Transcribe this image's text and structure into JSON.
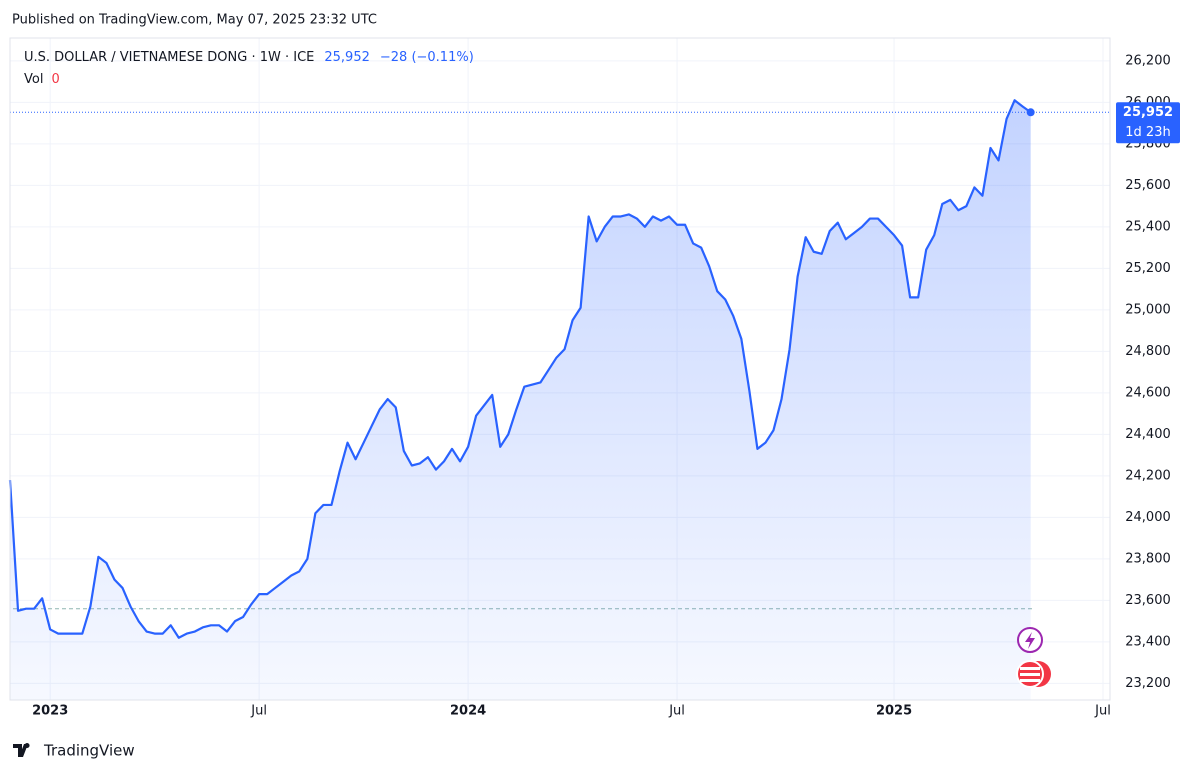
{
  "chart_data": {
    "type": "area",
    "published": "Published on TradingView.com, May 07, 2025 23:32 UTC",
    "symbol": "U.S. DOLLAR / VIETNAMESE DONG · 1W · ICE",
    "change": "−28 (−0.11%)",
    "volume_label": "Vol",
    "volume": 0,
    "brand": "TradingView",
    "countdown": "1d 23h",
    "price_label": {
      "value": 25952,
      "label": "25,952"
    },
    "reference_value": 23560,
    "categories": [
      null,
      null,
      null,
      null,
      null,
      "2023",
      null,
      null,
      null,
      null,
      null,
      null,
      null,
      null,
      null,
      null,
      null,
      null,
      null,
      null,
      null,
      null,
      null,
      null,
      null,
      null,
      null,
      null,
      null,
      null,
      null,
      "Jul",
      null,
      null,
      null,
      null,
      null,
      null,
      null,
      null,
      null,
      null,
      null,
      null,
      null,
      null,
      null,
      null,
      null,
      null,
      null,
      null,
      null,
      null,
      null,
      null,
      null,
      "2024",
      null,
      null,
      null,
      null,
      null,
      null,
      null,
      null,
      null,
      null,
      null,
      null,
      null,
      null,
      null,
      null,
      null,
      null,
      null,
      null,
      null,
      null,
      null,
      null,
      null,
      "Jul",
      null,
      null,
      null,
      null,
      null,
      null,
      null,
      null,
      null,
      null,
      null,
      null,
      null,
      null,
      null,
      null,
      null,
      null,
      null,
      null,
      null,
      null,
      null,
      null,
      null,
      null,
      "2025",
      null,
      null,
      null,
      null,
      null,
      null,
      null,
      null,
      null,
      null,
      null,
      null,
      null,
      null,
      null,
      null,
      null,
      null,
      null,
      null,
      null,
      null,
      null,
      null,
      null,
      "Jul"
    ],
    "series": [
      {
        "name": "USD/VND",
        "color": "#2962ff",
        "values": [
          24180,
          23550,
          23560,
          23560,
          23610,
          23460,
          23440,
          23440,
          23440,
          23440,
          23570,
          23810,
          23780,
          23700,
          23660,
          23570,
          23500,
          23450,
          23440,
          23440,
          23480,
          23420,
          23440,
          23450,
          23470,
          23480,
          23480,
          23450,
          23500,
          23520,
          23580,
          23630,
          23630,
          23660,
          23690,
          23720,
          23740,
          23800,
          24020,
          24060,
          24060,
          24220,
          24360,
          24280,
          24360,
          24440,
          24520,
          24570,
          24530,
          24320,
          24250,
          24260,
          24290,
          24230,
          24270,
          24330,
          24270,
          24340,
          24490,
          24540,
          24590,
          24340,
          24400,
          24520,
          24630,
          24640,
          24650,
          24710,
          24770,
          24810,
          24950,
          25010,
          25450,
          25330,
          25400,
          25450,
          25450,
          25460,
          25440,
          25400,
          25450,
          25430,
          25450,
          25410,
          25410,
          25320,
          25300,
          25210,
          25090,
          25050,
          24970,
          24860,
          24610,
          24330,
          24360,
          24420,
          24570,
          24810,
          25160,
          25350,
          25280,
          25270,
          25380,
          25420,
          25340,
          25370,
          25400,
          25440,
          25440,
          25400,
          25360,
          25310,
          25060,
          25060,
          25290,
          25360,
          25510,
          25530,
          25480,
          25500,
          25590,
          25550,
          25780,
          25720,
          25920,
          26010,
          25980,
          25952,
          null,
          null,
          null,
          null,
          null,
          null,
          null,
          null,
          null
        ]
      }
    ],
    "ylim": [
      23120,
      26310
    ],
    "yticks": [
      {
        "value": 23200,
        "label": "23,200"
      },
      {
        "value": 23400,
        "label": "23,400"
      },
      {
        "value": 23600,
        "label": "23,600"
      },
      {
        "value": 23800,
        "label": "23,800"
      },
      {
        "value": 24000,
        "label": "24,000"
      },
      {
        "value": 24200,
        "label": "24,200"
      },
      {
        "value": 24400,
        "label": "24,400"
      },
      {
        "value": 24600,
        "label": "24,600"
      },
      {
        "value": 24800,
        "label": "24,800"
      },
      {
        "value": 25000,
        "label": "25,000"
      },
      {
        "value": 25200,
        "label": "25,200"
      },
      {
        "value": 25400,
        "label": "25,400"
      },
      {
        "value": 25600,
        "label": "25,600"
      },
      {
        "value": 25800,
        "label": "25,800"
      },
      {
        "value": 26000,
        "label": "26,000"
      },
      {
        "value": 26200,
        "label": "26,200"
      }
    ],
    "grid": true
  }
}
